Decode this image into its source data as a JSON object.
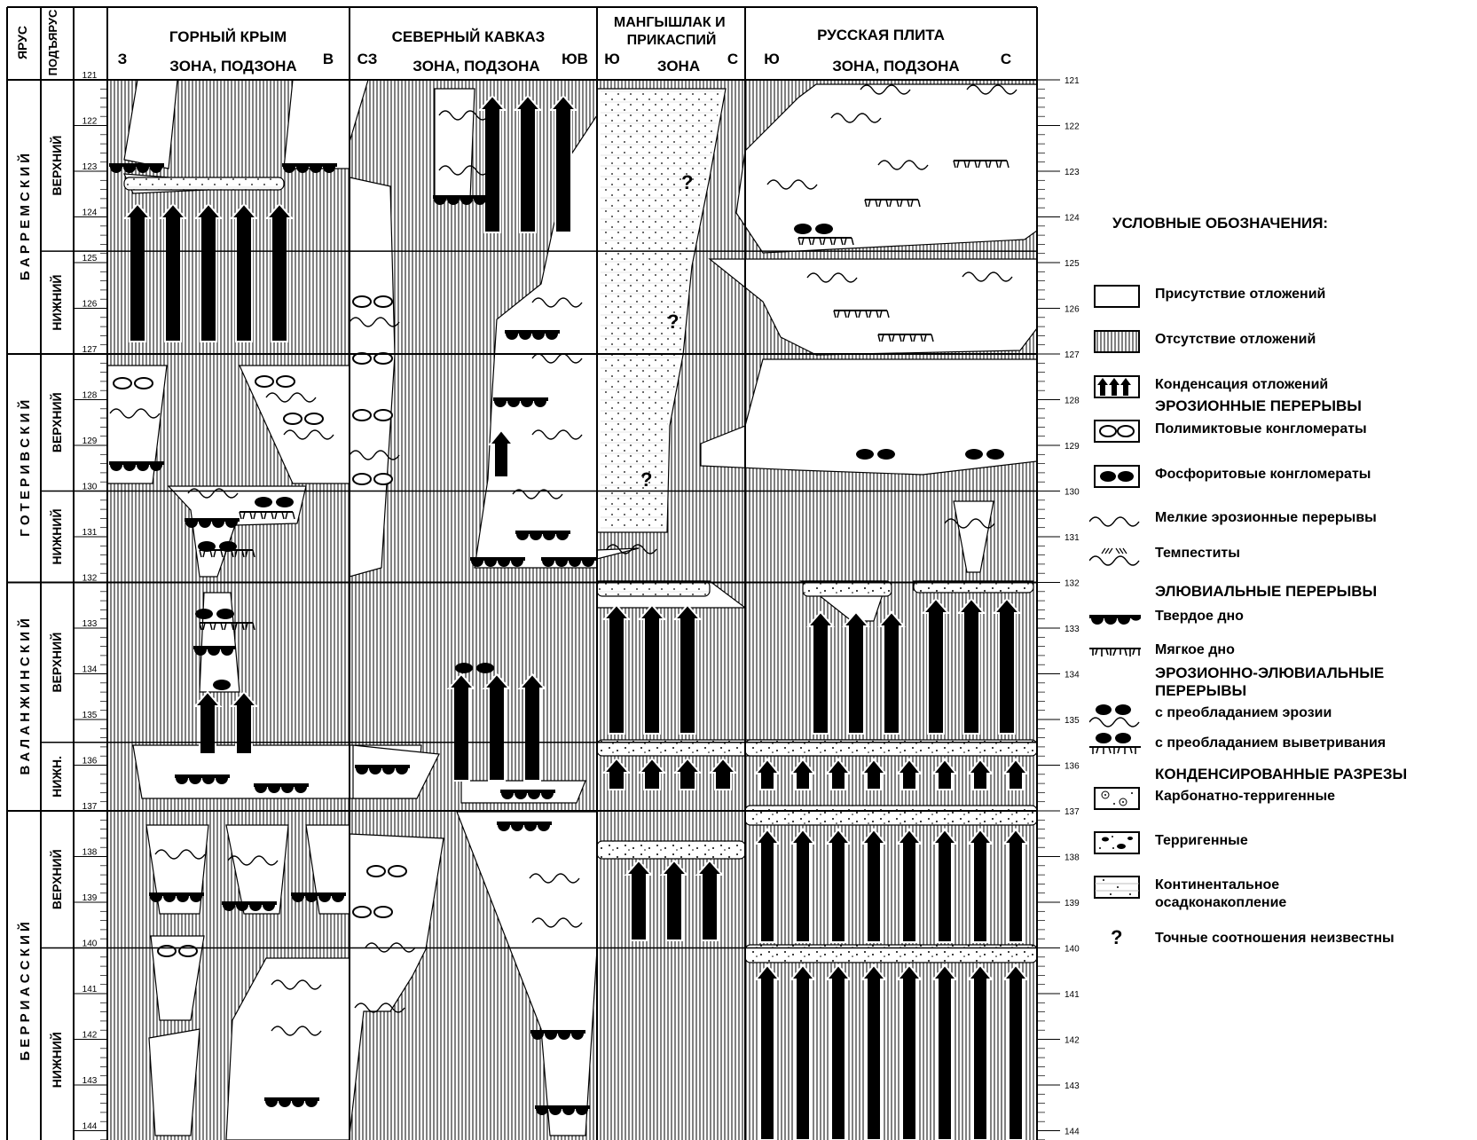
{
  "header": {
    "col_stage": "ЯРУС",
    "col_substage": "ПОДЪЯРУС",
    "regions": [
      {
        "name": "ГОРНЫЙ КРЫМ",
        "sub": "ЗОНА, ПОДЗОНА",
        "left": "З",
        "right": "В"
      },
      {
        "name": "СЕВЕРНЫЙ КАВКАЗ",
        "sub": "ЗОНА, ПОДЗОНА",
        "left": "СЗ",
        "right": "ЮВ"
      },
      {
        "name": "МАНГЫШЛАК И ПРИКАСПИЙ",
        "sub": "ЗОНА",
        "left": "Ю",
        "right": "С"
      },
      {
        "name": "РУССКАЯ ПЛИТА",
        "sub": "ЗОНА, ПОДЗОНА",
        "left": "Ю",
        "right": "С"
      }
    ]
  },
  "stages": [
    {
      "name": "Б А Р Р Е М С К И Й",
      "subs": [
        "ВЕРХНИЙ",
        "НИЖНИЙ"
      ]
    },
    {
      "name": "Г О Т Е Р И В С К И Й",
      "subs": [
        "ВЕРХНИЙ",
        "НИЖНИЙ"
      ]
    },
    {
      "name": "В А Л А Н Ж И Н С К И Й",
      "subs": [
        "ВЕРХНИЙ",
        "НИЖН."
      ]
    },
    {
      "name": "Б Е Р Р И А С С К И Й",
      "subs": [
        "ВЕРХНИЙ",
        "НИЖНИЙ"
      ]
    }
  ],
  "age_ticks": [
    "121",
    "122",
    "123",
    "124",
    "125",
    "126",
    "127",
    "128",
    "129",
    "130",
    "131",
    "132",
    "133",
    "134",
    "135",
    "136",
    "137",
    "138",
    "139",
    "140",
    "141",
    "142",
    "143",
    "144"
  ],
  "question_mark": "?",
  "legend": {
    "title": "УСЛОВНЫЕ ОБОЗНАЧЕНИЯ:",
    "presence": "Присутствие отложений",
    "absence": "Отсутствие отложений",
    "condensation": "Конденсация отложений",
    "erosion_head": "ЭРОЗИОННЫЕ ПЕРЕРЫВЫ",
    "polymict": "Полимиктовые конгломераты",
    "phosphorite": "Фосфоритовые конгломераты",
    "small_erosion": "Мелкие эрозионные перерывы",
    "tempestites": "Темпеститы",
    "eluvial_head": "ЭЛЮВИАЛЬНЫЕ ПЕРЕРЫВЫ",
    "hardground": "Твердое дно",
    "softground": "Мягкое дно",
    "eros_eluv_head": "ЭРОЗИОННО-ЭЛЮВИАЛЬНЫЕ ПЕРЕРЫВЫ",
    "erosion_dominant": "с преобладанием эрозии",
    "weathering_dominant": "с преобладанием выветривания",
    "condensed_head": "КОНДЕНСИРОВАННЫЕ РАЗРЕЗЫ",
    "carb_terr": "Карбонатно-терригенные",
    "terrigenous": "Терригенные",
    "continental": "Континентальное осадконакопление",
    "unknown": "Точные соотношения неизвестны"
  }
}
